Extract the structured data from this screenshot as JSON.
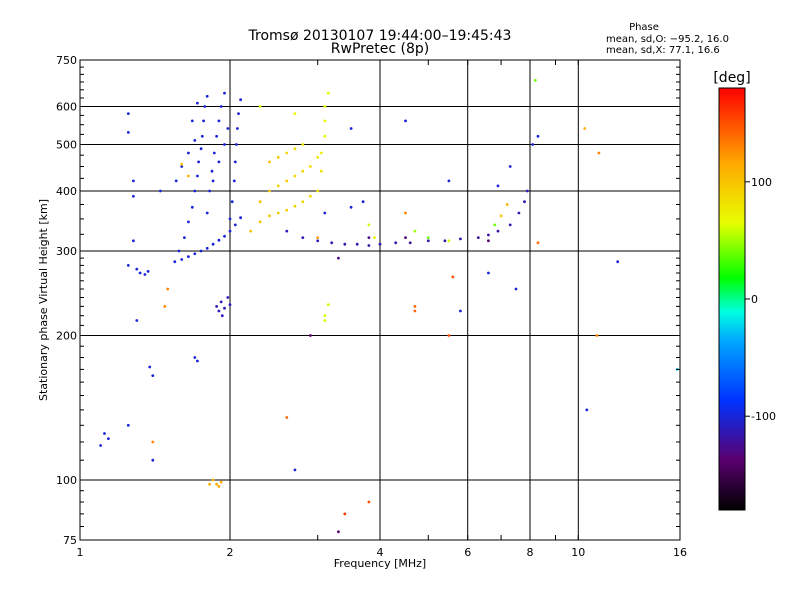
{
  "chart_data": {
    "type": "scatter",
    "title": "Tromsø 20130107 19:44:00–19:45:43",
    "subtitle": "RwPretec (8p)",
    "xlabel": "Frequency [MHz]",
    "ylabel": "Stationary phase Virtual Height [km]",
    "x_scale": "log",
    "y_scale": "log",
    "xlim": [
      1,
      16
    ],
    "ylim": [
      75,
      750
    ],
    "x_ticks": [
      1,
      2,
      4,
      6,
      8,
      10,
      16
    ],
    "y_ticks": [
      75,
      100,
      200,
      300,
      400,
      500,
      600,
      750
    ],
    "grid": true,
    "stats": {
      "heading": "Phase",
      "line_o": "mean, sd,O: −95.2, 16.0",
      "line_x": "mean, sd,X:  77.1, 16.6"
    },
    "colorbar": {
      "label": "[deg]",
      "range": [
        -180,
        180
      ],
      "ticks": [
        100,
        0,
        -100
      ]
    },
    "series": [
      {
        "points": [
          [
            1.55,
            285,
            -100
          ],
          [
            1.6,
            288,
            -100
          ],
          [
            1.65,
            292,
            -100
          ],
          [
            1.7,
            296,
            -100
          ],
          [
            1.75,
            300,
            -100
          ],
          [
            1.8,
            304,
            -100
          ],
          [
            1.85,
            310,
            -100
          ],
          [
            1.9,
            316,
            -100
          ],
          [
            1.95,
            322,
            -100
          ],
          [
            2.0,
            330,
            -100
          ],
          [
            2.05,
            340,
            -100
          ],
          [
            2.1,
            352,
            -100
          ],
          [
            1.58,
            300,
            -100
          ],
          [
            1.62,
            320,
            -100
          ],
          [
            1.65,
            345,
            -100
          ],
          [
            1.68,
            370,
            -100
          ],
          [
            1.7,
            400,
            -100
          ],
          [
            1.72,
            430,
            -100
          ],
          [
            1.73,
            460,
            -100
          ],
          [
            1.75,
            490,
            -100
          ],
          [
            1.76,
            520,
            -100
          ],
          [
            1.77,
            560,
            -100
          ],
          [
            1.78,
            600,
            -100
          ],
          [
            1.8,
            630,
            -100
          ],
          [
            1.8,
            360,
            -100
          ],
          [
            1.82,
            400,
            -100
          ],
          [
            1.84,
            440,
            -100
          ],
          [
            1.86,
            480,
            -100
          ],
          [
            1.88,
            520,
            -100
          ],
          [
            1.9,
            560,
            -100
          ],
          [
            1.92,
            600,
            -100
          ],
          [
            1.95,
            640,
            -100
          ],
          [
            2.0,
            350,
            -100
          ],
          [
            2.02,
            380,
            -100
          ],
          [
            2.04,
            420,
            -100
          ],
          [
            2.05,
            460,
            -100
          ],
          [
            2.06,
            500,
            -100
          ],
          [
            2.07,
            540,
            -100
          ],
          [
            2.08,
            580,
            -100
          ],
          [
            2.1,
            620,
            -100
          ],
          [
            1.56,
            420,
            -100
          ],
          [
            1.6,
            450,
            -100
          ],
          [
            1.65,
            480,
            -100
          ],
          [
            1.7,
            510,
            -100
          ],
          [
            1.68,
            560,
            -100
          ],
          [
            1.72,
            610,
            -100
          ],
          [
            1.85,
            420,
            -100
          ],
          [
            1.9,
            460,
            -100
          ],
          [
            1.95,
            500,
            -100
          ],
          [
            1.98,
            540,
            -100
          ],
          [
            1.3,
            275,
            -100
          ],
          [
            1.32,
            270,
            -100
          ],
          [
            1.35,
            268,
            -100
          ],
          [
            1.37,
            272,
            -100
          ],
          [
            1.25,
            280,
            -100
          ],
          [
            1.12,
            125,
            -100
          ],
          [
            1.14,
            122,
            -100
          ],
          [
            1.1,
            118,
            -100
          ],
          [
            1.4,
            165,
            -100
          ],
          [
            1.38,
            172,
            -100
          ],
          [
            1.7,
            180,
            -100
          ],
          [
            1.72,
            177,
            -100
          ],
          [
            1.88,
            230,
            -110
          ],
          [
            1.9,
            225,
            -110
          ],
          [
            1.92,
            235,
            -110
          ],
          [
            1.95,
            228,
            -110
          ],
          [
            1.98,
            240,
            -110
          ],
          [
            2.0,
            232,
            -110
          ],
          [
            1.93,
            220,
            -110
          ],
          [
            2.6,
            330,
            -110
          ],
          [
            2.8,
            320,
            -110
          ],
          [
            3.0,
            315,
            -110
          ],
          [
            3.2,
            312,
            -115
          ],
          [
            3.4,
            310,
            -115
          ],
          [
            3.6,
            310,
            -115
          ],
          [
            3.8,
            308,
            -115
          ],
          [
            4.0,
            310,
            -110
          ],
          [
            4.3,
            312,
            -115
          ],
          [
            4.6,
            312,
            -120
          ],
          [
            5.0,
            315,
            -115
          ],
          [
            5.4,
            315,
            -115
          ],
          [
            5.8,
            318,
            -115
          ],
          [
            6.3,
            320,
            -120
          ],
          [
            6.6,
            324,
            -120
          ],
          [
            6.9,
            330,
            -120
          ],
          [
            7.3,
            340,
            -115
          ],
          [
            7.6,
            360,
            -110
          ],
          [
            7.8,
            380,
            -110
          ],
          [
            7.9,
            400,
            -110
          ],
          [
            3.1,
            360,
            -100
          ],
          [
            3.5,
            370,
            -100
          ],
          [
            3.7,
            380,
            -100
          ],
          [
            5.5,
            420,
            -100
          ],
          [
            7.3,
            450,
            -100
          ],
          [
            6.9,
            410,
            -100
          ],
          [
            1.25,
            580,
            -100
          ],
          [
            1.25,
            530,
            -100
          ],
          [
            1.28,
            420,
            -100
          ],
          [
            1.28,
            390,
            -100
          ],
          [
            1.28,
            315,
            -100
          ],
          [
            1.3,
            215,
            -100
          ],
          [
            1.25,
            130,
            -100
          ],
          [
            1.4,
            110,
            -100
          ],
          [
            1.45,
            400,
            -100
          ],
          [
            2.7,
            105,
            -100
          ],
          [
            3.5,
            540,
            -100
          ],
          [
            4.5,
            560,
            -100
          ],
          [
            5.8,
            225,
            -100
          ],
          [
            6.6,
            270,
            -100
          ],
          [
            7.5,
            250,
            -100
          ],
          [
            8.1,
            500,
            -100
          ],
          [
            8.3,
            520,
            -100
          ],
          [
            10.4,
            140,
            -100
          ],
          [
            12.0,
            285,
            -100
          ],
          [
            15.8,
            170,
            -20
          ]
        ]
      },
      {
        "points": [
          [
            2.2,
            330,
            100
          ],
          [
            2.3,
            345,
            100
          ],
          [
            2.4,
            355,
            100
          ],
          [
            2.5,
            360,
            95
          ],
          [
            2.6,
            365,
            95
          ],
          [
            2.7,
            372,
            90
          ],
          [
            2.8,
            380,
            90
          ],
          [
            2.9,
            390,
            85
          ],
          [
            3.0,
            400,
            85
          ],
          [
            2.3,
            380,
            100
          ],
          [
            2.4,
            400,
            100
          ],
          [
            2.5,
            410,
            95
          ],
          [
            2.6,
            420,
            95
          ],
          [
            2.7,
            430,
            90
          ],
          [
            2.8,
            440,
            90
          ],
          [
            2.9,
            450,
            85
          ],
          [
            3.0,
            470,
            80
          ],
          [
            2.4,
            460,
            100
          ],
          [
            2.5,
            470,
            95
          ],
          [
            2.6,
            480,
            90
          ],
          [
            2.7,
            490,
            85
          ],
          [
            2.8,
            500,
            80
          ],
          [
            3.05,
            440,
            80
          ],
          [
            3.05,
            480,
            75
          ],
          [
            3.1,
            520,
            70
          ],
          [
            3.1,
            560,
            70
          ],
          [
            3.1,
            600,
            65
          ],
          [
            3.15,
            640,
            65
          ],
          [
            3.1,
            215,
            60
          ],
          [
            3.1,
            220,
            60
          ],
          [
            3.15,
            232,
            60
          ],
          [
            1.85,
            100,
            110
          ],
          [
            1.88,
            98,
            115
          ],
          [
            1.9,
            97,
            115
          ],
          [
            1.92,
            99,
            110
          ],
          [
            1.82,
            98,
            110
          ],
          [
            3.8,
            340,
            60
          ],
          [
            3.9,
            320,
            70
          ],
          [
            4.7,
            330,
            50
          ],
          [
            5.0,
            320,
            40
          ],
          [
            5.5,
            315,
            60
          ],
          [
            6.8,
            340,
            40
          ],
          [
            7.0,
            355,
            100
          ],
          [
            7.2,
            375,
            110
          ],
          [
            2.3,
            600,
            60
          ],
          [
            2.7,
            580,
            70
          ],
          [
            1.6,
            455,
            100
          ],
          [
            1.65,
            430,
            110
          ],
          [
            8.2,
            680,
            40
          ],
          [
            11.0,
            480,
            130
          ]
        ]
      },
      {
        "points": [
          [
            1.5,
            250,
            130
          ],
          [
            1.48,
            230,
            130
          ],
          [
            1.4,
            120,
            130
          ],
          [
            2.6,
            135,
            140
          ],
          [
            3.4,
            85,
            160
          ],
          [
            3.8,
            90,
            150
          ],
          [
            4.7,
            230,
            140
          ],
          [
            4.7,
            225,
            140
          ],
          [
            5.5,
            200,
            150
          ],
          [
            5.6,
            265,
            150
          ],
          [
            8.3,
            312,
            140
          ],
          [
            10.3,
            540,
            110
          ],
          [
            10.9,
            200,
            130
          ],
          [
            3.0,
            320,
            120
          ],
          [
            4.5,
            360,
            130
          ]
        ]
      },
      {
        "points": [
          [
            3.3,
            78,
            -140
          ],
          [
            3.3,
            290,
            -130
          ],
          [
            2.9,
            200,
            -140
          ],
          [
            3.8,
            320,
            -130
          ],
          [
            4.5,
            320,
            -130
          ],
          [
            6.6,
            315,
            -140
          ]
        ]
      }
    ]
  }
}
